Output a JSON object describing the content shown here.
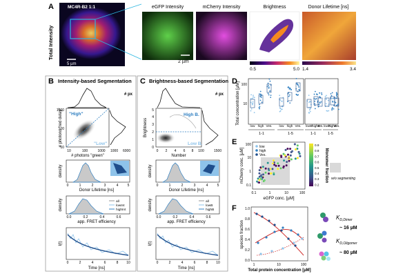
{
  "panel_a": {
    "letter": "A",
    "overview_title": "MC4R-B2 1:1",
    "side_label": "Total Intensity",
    "scale_overview": "5 µm",
    "scale_zoom": "2 µm",
    "images": [
      "eGFP Intensity",
      "mCherry Intensity",
      "Brightness",
      "Donor Lifetime [ns]"
    ],
    "brightness_range": [
      "0.5",
      "5.0"
    ],
    "lifetime_range": [
      "1.4",
      "3.4"
    ]
  },
  "panel_b": {
    "letter": "B",
    "title": "Intensity-based Segmentation",
    "hist_label": "# px",
    "ylabel": "# photons \"red delay\"",
    "xlabel": "# photons \"green\"",
    "high": "\"High\"",
    "low": "\"Low\"",
    "density": "density",
    "lifetime": "Donor Lifetime [ns]",
    "fret": "app. FRET efficiency",
    "time": "Time [ns]",
    "decay_ylabel": "I(t)",
    "legend": [
      "all",
      "lowInt",
      "highInt"
    ],
    "ticks_main_x": [
      "10",
      "100",
      "1000"
    ],
    "ticks_main_y": [
      "10",
      "100",
      "1000"
    ],
    "ticks_hist": [
      "1000",
      "6000"
    ],
    "ticks_time": [
      "0",
      "2",
      "4",
      "6",
      "8",
      "10"
    ],
    "ticks_life": [
      "0",
      "1",
      "2",
      "3",
      "4",
      "5"
    ],
    "ticks_fret": [
      "0.0",
      "0.2",
      "0.4",
      "0.6"
    ]
  },
  "panel_c": {
    "letter": "C",
    "title": "Brightness-based Segmentation",
    "hist_label": "# px",
    "ylabel": "Brightness",
    "xlabel": "Number",
    "high": "High B.",
    "low": "Low B.",
    "density": "density",
    "lifetime": "Donor Lifetime [ns]",
    "fret": "app. FRET efficiency",
    "time": "Time [ns]",
    "decay_ylabel": "I(t)",
    "legend": [
      "all",
      "lowB",
      "highB"
    ],
    "ticks_main_x": [
      "0",
      "2",
      "4",
      "6",
      "8",
      "10"
    ],
    "ticks_main_y": [
      "0",
      "1",
      "2",
      "3",
      "4",
      "5"
    ],
    "ticks_hist": [
      "0",
      "1500"
    ],
    "ticks_time": [
      "0",
      "2",
      "4",
      "6",
      "8",
      "10"
    ],
    "ticks_life": [
      "0",
      "1",
      "2",
      "3",
      "4",
      "5"
    ],
    "ticks_fret": [
      "0.0",
      "0.2",
      "0.4",
      "0.6"
    ]
  },
  "panel_d": {
    "letter": "D",
    "ylabel": "Total concentration [µM]",
    "yticks": [
      "100",
      "10"
    ],
    "cats": [
      "low",
      "high",
      "Ves.",
      "low",
      "high",
      "Ves.",
      "lowB",
      "highB",
      "Ves.",
      "lowB",
      "highB",
      "Ves."
    ],
    "groups": [
      "1-1",
      "1-5",
      "1-1",
      "1-5"
    ]
  },
  "panel_e": {
    "letter": "E",
    "ylabel": "mCherry conc. [µM]",
    "xlabel": "eGFP conc. [µM]",
    "legend": [
      "low",
      "high",
      "Ves."
    ],
    "colorbar_label": "Monomer fraction",
    "colorbar_ticks": [
      "0.9",
      "0.8",
      "0.7",
      "0.6",
      "0.5",
      "0.4",
      "0.3",
      "0.2"
    ],
    "legend_box": "w/o segmenting",
    "xticks": [
      "0.1",
      "1",
      "10",
      "100"
    ],
    "yticks": [
      "100",
      "10",
      "1",
      "0.1"
    ]
  },
  "panel_f": {
    "letter": "F",
    "ylabel": "species fraction",
    "xlabel": "Total protein concentration [µM]",
    "xticks": [
      "1",
      "10",
      "100"
    ],
    "yticks": [
      "1.0",
      "0.8",
      "0.6",
      "0.4",
      "0.2",
      "0.0"
    ],
    "kd_dimer_label": "K",
    "kd_dimer_sub": "D,Dimer",
    "kd_dimer_value": "~ 16 µM",
    "kd_olig_label": "K",
    "kd_olig_sub": "D,Oligomer",
    "kd_olig_value": "~ 80 µM"
  },
  "colors": {
    "blue": "#2f7fc1",
    "light_blue": "#8ec3ea",
    "dark_blue": "#1f4e8c",
    "red": "#d1302f",
    "gray_fill": "#c9c9c9"
  }
}
